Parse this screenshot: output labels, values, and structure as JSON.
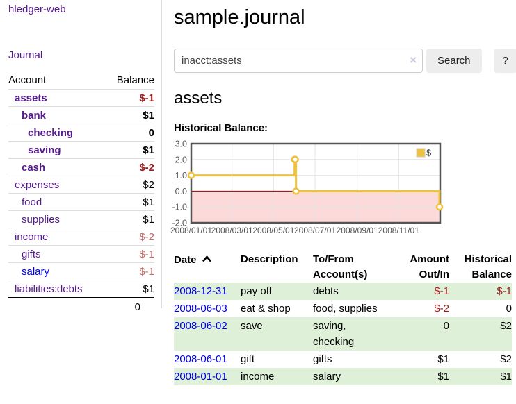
{
  "brand": "hledger-web",
  "nav": {
    "journal": "Journal"
  },
  "colors": {
    "visited_link_purple": "#551a8b",
    "link_blue": "#0000ee",
    "negative_strong_red": "#a01c1c",
    "negative_soft_red": "#c56b6b",
    "row_stripe_green": "#dff0d8",
    "button_gray": "#ededed"
  },
  "sidebar": {
    "header": {
      "account": "Account",
      "balance": "Balance"
    },
    "accounts": [
      {
        "name": "assets",
        "balance": "$-1",
        "indent": 1,
        "bold": true,
        "negative": "strong",
        "link_color": "purple"
      },
      {
        "name": "bank",
        "balance": "$1",
        "indent": 2,
        "bold": true,
        "negative": "none",
        "link_color": "purple"
      },
      {
        "name": "checking",
        "balance": "0",
        "indent": 3,
        "bold": true,
        "negative": "none",
        "link_color": "purple"
      },
      {
        "name": "saving",
        "balance": "$1",
        "indent": 3,
        "bold": true,
        "negative": "none",
        "link_color": "purple"
      },
      {
        "name": "cash",
        "balance": "$-2",
        "indent": 2,
        "bold": true,
        "negative": "strong",
        "link_color": "purple"
      },
      {
        "name": "expenses",
        "balance": "$2",
        "indent": 1,
        "bold": false,
        "negative": "none",
        "link_color": "purple"
      },
      {
        "name": "food",
        "balance": "$1",
        "indent": 2,
        "bold": false,
        "negative": "none",
        "link_color": "purple"
      },
      {
        "name": "supplies",
        "balance": "$1",
        "indent": 2,
        "bold": false,
        "negative": "none",
        "link_color": "purple"
      },
      {
        "name": "income",
        "balance": "$-2",
        "indent": 1,
        "bold": false,
        "negative": "soft",
        "link_color": "purple"
      },
      {
        "name": "gifts",
        "balance": "$-1",
        "indent": 2,
        "bold": false,
        "negative": "soft",
        "link_color": "purple"
      },
      {
        "name": "salary",
        "balance": "$-1",
        "indent": 2,
        "bold": false,
        "negative": "soft",
        "link_color": "blue"
      },
      {
        "name": "liabilities:debts",
        "balance": "$1",
        "indent": 1,
        "bold": false,
        "negative": "none",
        "link_color": "purple"
      }
    ],
    "total": "0"
  },
  "main": {
    "title": "sample.journal",
    "search": {
      "value": "inacct:assets",
      "clear": "×",
      "search_button": "Search",
      "help_button": "?"
    },
    "account_heading": "assets",
    "chart_label": "Historical Balance:"
  },
  "chart_data": {
    "type": "line",
    "steps": true,
    "title": "Historical Balance:",
    "series": [
      {
        "name": "$",
        "color": "#edc240",
        "points": [
          [
            "2008-01-01",
            1
          ],
          [
            "2008-06-01",
            2
          ],
          [
            "2008-06-02",
            2
          ],
          [
            "2008-06-03",
            0
          ],
          [
            "2008-12-31",
            -1
          ]
        ]
      }
    ],
    "xlim": [
      "2008-01-01",
      "2009-01-01"
    ],
    "ylim": [
      -2,
      3
    ],
    "yticks": [
      3,
      2,
      1,
      0,
      -1,
      -2
    ],
    "ytick_labels": [
      "3.0",
      "2.0",
      "1.0",
      "0.0",
      "-1.0",
      "-2.0"
    ],
    "xticks": [
      "2008-01-01",
      "2008-03-01",
      "2008-05-01",
      "2008-07-01",
      "2008-09-01",
      "2008-11-01"
    ],
    "xtick_labels": [
      "2008/01/01",
      "2008/03/01",
      "2008/05/01",
      "2008/07/01",
      "2008/09/01",
      "2008/11/01"
    ],
    "legend": {
      "label": "$",
      "position": "top-right"
    },
    "grid": true,
    "negative_region_color": "#fcdada",
    "zero_line_color": "#8b0000",
    "grid_color": "#e4e4e4",
    "axis_text_color": "#545454",
    "border_color": "#545454"
  },
  "register": {
    "headers": {
      "date": "Date",
      "description": "Description",
      "accounts": "To/From Account(s)",
      "amount": "Amount Out/In",
      "balance": "Historical Balance"
    },
    "sort": {
      "column": "date",
      "direction": "ascending"
    },
    "rows": [
      {
        "date": "2008-12-31",
        "description": "pay off",
        "accounts": "debts",
        "amount": "$-1",
        "balance": "$-1",
        "amount_negative": true,
        "balance_negative": true
      },
      {
        "date": "2008-06-03",
        "description": "eat & shop",
        "accounts": "food, supplies",
        "amount": "$-2",
        "balance": "0",
        "amount_negative": true,
        "balance_negative": false
      },
      {
        "date": "2008-06-02",
        "description": "save",
        "accounts": "saving, checking",
        "amount": "0",
        "balance": "$2",
        "amount_negative": false,
        "balance_negative": false
      },
      {
        "date": "2008-06-01",
        "description": "gift",
        "accounts": "gifts",
        "amount": "$1",
        "balance": "$2",
        "amount_negative": false,
        "balance_negative": false
      },
      {
        "date": "2008-01-01",
        "description": "income",
        "accounts": "salary",
        "amount": "$1",
        "balance": "$1",
        "amount_negative": false,
        "balance_negative": false
      }
    ]
  }
}
